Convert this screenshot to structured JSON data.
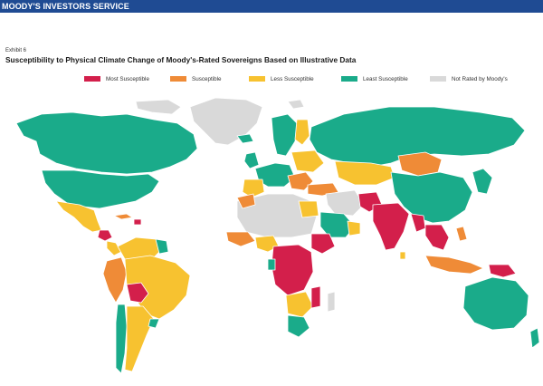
{
  "header": {
    "brand": "MOODY'S INVESTORS SERVICE"
  },
  "exhibit": {
    "label": "Exhibit 6",
    "title": "Susceptibility to Physical Climate Change of Moody's-Rated Sovereigns Based on Illustrative Data"
  },
  "legend": {
    "items": [
      {
        "label": "Most Susceptible",
        "color": "#d31f4b"
      },
      {
        "label": "Susceptible",
        "color": "#ef8b37"
      },
      {
        "label": "Less Susceptible",
        "color": "#f7c230"
      },
      {
        "label": "Least Susceptible",
        "color": "#1aab8a"
      },
      {
        "label": "Not Rated by Moody's",
        "color": "#d9d9d9"
      }
    ]
  },
  "map": {
    "categories": {
      "most": "#d31f4b",
      "susceptible": "#ef8b37",
      "less": "#f7c230",
      "least": "#1aab8a",
      "unrated": "#d9d9d9"
    }
  }
}
